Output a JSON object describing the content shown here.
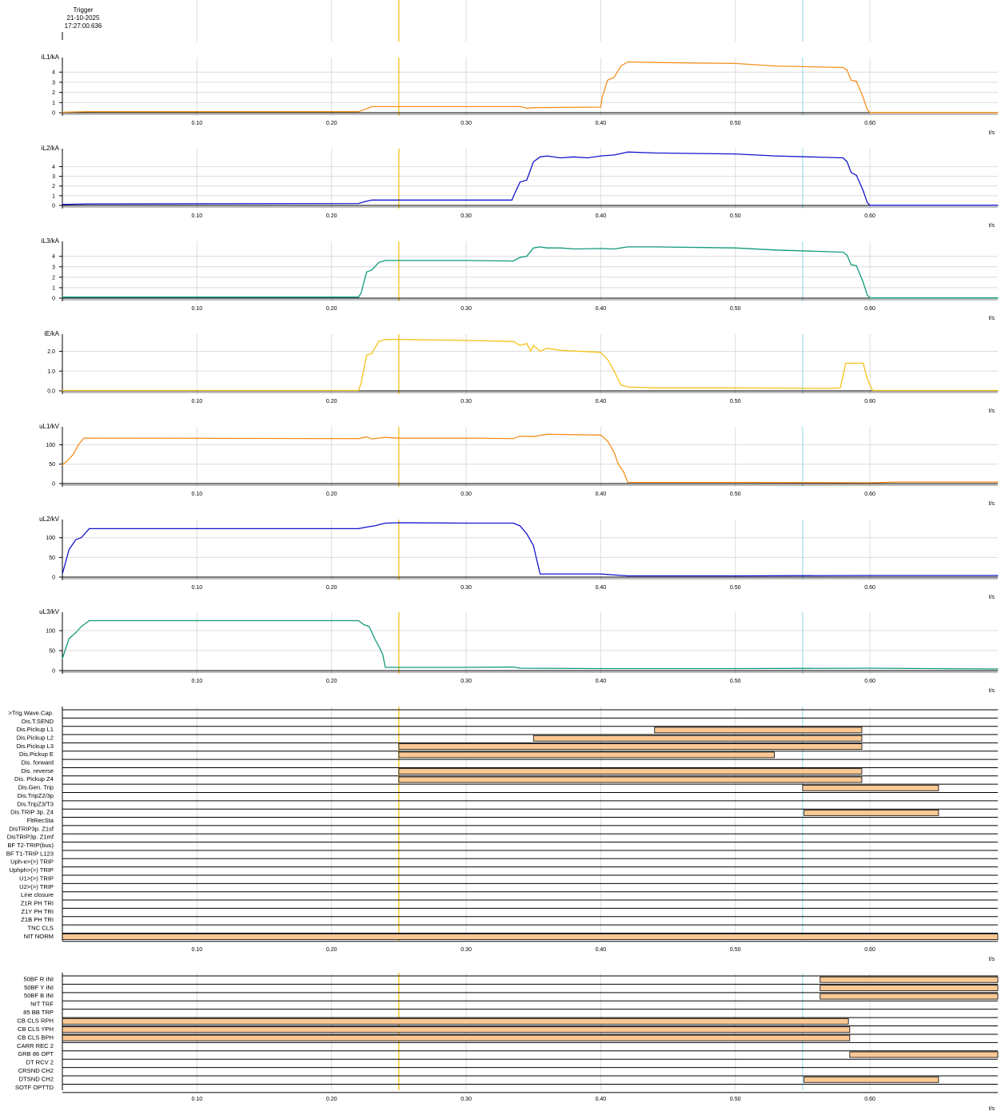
{
  "trigger": {
    "title": "Trigger",
    "date": "21-10-2025",
    "time": "17:27:00.636"
  },
  "colors": {
    "cursor_trigger": "#f5c21a",
    "cursor_2": "#8fd4e6",
    "orange": "#f5901e",
    "blue": "#1414cc",
    "green": "#119a7c",
    "yellow": "#f5c21a",
    "bar_fill": "#fbc894",
    "grid": "#dcdcdc"
  },
  "cursors": {
    "trigger_t": 0.25,
    "second_t": 0.55
  },
  "chart_data": [
    {
      "type": "line",
      "name": "iL1",
      "ylabel": "iL1/kA",
      "xlabel": "t/s",
      "color_key": "orange",
      "ylim": [
        0,
        5.2
      ],
      "yticks": [
        0,
        1,
        2,
        3,
        4
      ],
      "ytick_labels": [
        "0",
        "1",
        "2",
        "3",
        "4"
      ],
      "xticks": [
        0.1,
        0.2,
        0.3,
        0.4,
        0.5,
        0.6
      ],
      "xtick_labels": [
        "0.10",
        "0.20",
        "0.30",
        "0.40",
        "0.50",
        "0.60"
      ],
      "xlim": [
        0,
        0.695
      ],
      "x": [
        0,
        0.02,
        0.22,
        0.225,
        0.23,
        0.25,
        0.3,
        0.34,
        0.345,
        0.35,
        0.4,
        0.401,
        0.405,
        0.41,
        0.415,
        0.42,
        0.44,
        0.5,
        0.53,
        0.58,
        0.583,
        0.586,
        0.59,
        0.595,
        0.598,
        0.6,
        0.695
      ],
      "y": [
        0.05,
        0.1,
        0.1,
        0.35,
        0.6,
        0.6,
        0.6,
        0.6,
        0.45,
        0.5,
        0.55,
        1.5,
        3.2,
        3.5,
        4.6,
        5.0,
        4.95,
        4.85,
        4.6,
        4.45,
        4.2,
        3.2,
        3.1,
        1.5,
        0.3,
        0.02,
        0.02
      ]
    },
    {
      "type": "line",
      "name": "iL2",
      "ylabel": "iL2/kA",
      "xlabel": "t/s",
      "color_key": "blue",
      "ylim": [
        0,
        5.6
      ],
      "yticks": [
        0,
        1,
        2,
        3,
        4
      ],
      "ytick_labels": [
        "0",
        "1",
        "2",
        "3",
        "4"
      ],
      "xticks": [
        0.1,
        0.2,
        0.3,
        0.4,
        0.5,
        0.6
      ],
      "xtick_labels": [
        "0.10",
        "0.20",
        "0.30",
        "0.40",
        "0.50",
        "0.60"
      ],
      "xlim": [
        0,
        0.695
      ],
      "x": [
        0,
        0.02,
        0.22,
        0.225,
        0.23,
        0.25,
        0.3,
        0.334,
        0.336,
        0.34,
        0.345,
        0.35,
        0.355,
        0.36,
        0.37,
        0.38,
        0.39,
        0.4,
        0.41,
        0.42,
        0.44,
        0.5,
        0.53,
        0.58,
        0.583,
        0.586,
        0.59,
        0.595,
        0.598,
        0.6,
        0.695
      ],
      "y": [
        0.1,
        0.15,
        0.2,
        0.4,
        0.55,
        0.55,
        0.55,
        0.55,
        1.2,
        2.4,
        2.6,
        4.5,
        5.0,
        5.1,
        4.9,
        5.0,
        4.9,
        5.1,
        5.2,
        5.5,
        5.4,
        5.3,
        5.1,
        4.9,
        4.5,
        3.4,
        3.1,
        1.5,
        0.3,
        0.02,
        0.02
      ]
    },
    {
      "type": "line",
      "name": "iL3",
      "ylabel": "iL3/kA",
      "xlabel": "t/s",
      "color_key": "green",
      "ylim": [
        0,
        5.2
      ],
      "yticks": [
        0,
        1,
        2,
        3,
        4
      ],
      "ytick_labels": [
        "0",
        "1",
        "2",
        "3",
        "4"
      ],
      "xticks": [
        0.1,
        0.2,
        0.3,
        0.4,
        0.5,
        0.6
      ],
      "xtick_labels": [
        "0.10",
        "0.20",
        "0.30",
        "0.40",
        "0.50",
        "0.60"
      ],
      "xlim": [
        0,
        0.695
      ],
      "x": [
        0,
        0.02,
        0.22,
        0.222,
        0.226,
        0.23,
        0.235,
        0.24,
        0.25,
        0.3,
        0.335,
        0.34,
        0.345,
        0.35,
        0.355,
        0.36,
        0.37,
        0.38,
        0.4,
        0.41,
        0.42,
        0.44,
        0.5,
        0.53,
        0.58,
        0.583,
        0.586,
        0.59,
        0.595,
        0.598,
        0.6,
        0.695
      ],
      "y": [
        0.1,
        0.1,
        0.1,
        0.5,
        2.5,
        2.7,
        3.4,
        3.6,
        3.6,
        3.6,
        3.55,
        3.9,
        4.0,
        4.8,
        4.9,
        4.8,
        4.8,
        4.7,
        4.75,
        4.7,
        4.9,
        4.9,
        4.8,
        4.6,
        4.4,
        4.1,
        3.2,
        3.1,
        1.5,
        0.3,
        0.02,
        0.02
      ]
    },
    {
      "type": "line",
      "name": "iE",
      "ylabel": "iE/kA",
      "xlabel": "t/s",
      "color_key": "yellow",
      "ylim": [
        0,
        2.75
      ],
      "yticks": [
        0,
        1,
        2
      ],
      "ytick_labels": [
        "0.0",
        "1.0",
        "2.0"
      ],
      "xticks": [
        0.1,
        0.2,
        0.3,
        0.4,
        0.5,
        0.6
      ],
      "xtick_labels": [
        "0.10",
        "0.20",
        "0.30",
        "0.40",
        "0.50",
        "0.60"
      ],
      "xlim": [
        0,
        0.695
      ],
      "x": [
        0,
        0.22,
        0.222,
        0.226,
        0.23,
        0.235,
        0.24,
        0.25,
        0.3,
        0.335,
        0.34,
        0.345,
        0.348,
        0.35,
        0.355,
        0.36,
        0.37,
        0.4,
        0.405,
        0.41,
        0.415,
        0.42,
        0.44,
        0.5,
        0.57,
        0.578,
        0.582,
        0.595,
        0.598,
        0.602,
        0.695
      ],
      "y": [
        0.02,
        0.02,
        0.4,
        1.8,
        1.9,
        2.5,
        2.6,
        2.6,
        2.55,
        2.5,
        2.3,
        2.4,
        2.0,
        2.3,
        2.0,
        2.15,
        2.05,
        1.95,
        1.6,
        1.0,
        0.3,
        0.2,
        0.15,
        0.15,
        0.12,
        0.15,
        1.4,
        1.4,
        0.6,
        0.02,
        0.02
      ]
    },
    {
      "type": "line",
      "name": "uL1",
      "ylabel": "uL1/kV",
      "xlabel": "t/s",
      "color_key": "orange",
      "ylim": [
        0,
        140
      ],
      "yticks": [
        0,
        50,
        100
      ],
      "ytick_labels": [
        "0",
        "50",
        "100"
      ],
      "xticks": [
        0.1,
        0.2,
        0.3,
        0.4,
        0.5,
        0.6
      ],
      "xtick_labels": [
        "0.10",
        "0.20",
        "0.30",
        "0.40",
        "0.50",
        "0.60"
      ],
      "xlim": [
        0,
        0.695
      ],
      "x": [
        0,
        0.004,
        0.008,
        0.012,
        0.016,
        0.02,
        0.22,
        0.226,
        0.23,
        0.24,
        0.25,
        0.3,
        0.335,
        0.34,
        0.35,
        0.36,
        0.4,
        0.405,
        0.41,
        0.413,
        0.417,
        0.42,
        0.5,
        0.6,
        0.62,
        0.695
      ],
      "y": [
        48,
        60,
        75,
        100,
        117,
        117,
        116,
        120,
        115,
        119,
        117,
        117,
        116,
        122,
        121,
        127,
        125,
        110,
        80,
        50,
        30,
        3,
        3,
        2,
        4,
        4
      ]
    },
    {
      "type": "line",
      "name": "uL2",
      "ylabel": "uL2/kV",
      "xlabel": "t/s",
      "color_key": "blue",
      "ylim": [
        0,
        140
      ],
      "yticks": [
        0,
        50,
        100
      ],
      "ytick_labels": [
        "0",
        "50",
        "100"
      ],
      "xticks": [
        0.1,
        0.2,
        0.3,
        0.4,
        0.5,
        0.6
      ],
      "xtick_labels": [
        "0.10",
        "0.20",
        "0.30",
        "0.40",
        "0.50",
        "0.60"
      ],
      "xlim": [
        0,
        0.695
      ],
      "x": [
        0,
        0.005,
        0.01,
        0.014,
        0.02,
        0.22,
        0.228,
        0.232,
        0.24,
        0.25,
        0.3,
        0.335,
        0.34,
        0.345,
        0.35,
        0.352,
        0.355,
        0.4,
        0.42,
        0.5,
        0.6,
        0.695
      ],
      "y": [
        8,
        70,
        95,
        100,
        123,
        123,
        128,
        130,
        137,
        138,
        137,
        137,
        130,
        110,
        80,
        50,
        8,
        8,
        3,
        3,
        4,
        4
      ]
    },
    {
      "type": "line",
      "name": "uL3",
      "ylabel": "uL3/kV",
      "xlabel": "t/s",
      "color_key": "green",
      "ylim": [
        0,
        140
      ],
      "yticks": [
        0,
        50,
        100
      ],
      "ytick_labels": [
        "0",
        "50",
        "100"
      ],
      "xticks": [
        0.1,
        0.2,
        0.3,
        0.4,
        0.5,
        0.6
      ],
      "xtick_labels": [
        "0.10",
        "0.20",
        "0.30",
        "0.40",
        "0.50",
        "0.60"
      ],
      "xlim": [
        0,
        0.695
      ],
      "x": [
        0,
        0.005,
        0.01,
        0.014,
        0.02,
        0.22,
        0.224,
        0.228,
        0.232,
        0.236,
        0.238,
        0.24,
        0.25,
        0.3,
        0.335,
        0.34,
        0.4,
        0.5,
        0.6,
        0.695
      ],
      "y": [
        30,
        80,
        95,
        110,
        125,
        125,
        115,
        110,
        80,
        55,
        40,
        8,
        8,
        8,
        9,
        6,
        5,
        5,
        6,
        4
      ]
    },
    {
      "type": "bar",
      "name": "binary-1",
      "xlabel": "t/s",
      "xticks": [
        0.1,
        0.2,
        0.3,
        0.4,
        0.5,
        0.6
      ],
      "xtick_labels": [
        "0.10",
        "0.20",
        "0.30",
        "0.40",
        "0.50",
        "0.60"
      ],
      "xlim": [
        0,
        0.695
      ],
      "signals": [
        {
          "label": ">Trig.Wave.Cap.",
          "intervals": []
        },
        {
          "label": "Dis.T.SEND",
          "intervals": []
        },
        {
          "label": "Dis.Pickup L1",
          "intervals": [
            [
              0.44,
              0.594
            ]
          ]
        },
        {
          "label": "Dis.Pickup L2",
          "intervals": [
            [
              0.35,
              0.594
            ]
          ]
        },
        {
          "label": "Dis.Pickup L3",
          "intervals": [
            [
              0.25,
              0.594
            ]
          ]
        },
        {
          "label": "Dis.Pickup E",
          "intervals": [
            [
              0.25,
              0.529
            ]
          ]
        },
        {
          "label": "Dis. forward",
          "intervals": []
        },
        {
          "label": "Dis. reverse",
          "intervals": [
            [
              0.25,
              0.594
            ]
          ]
        },
        {
          "label": "Dis. Pickup Z4",
          "intervals": [
            [
              0.25,
              0.594
            ]
          ]
        },
        {
          "label": "Dis.Gen. Trip",
          "intervals": [
            [
              0.55,
              0.651
            ]
          ]
        },
        {
          "label": "Dis.TripZ2/3p",
          "intervals": []
        },
        {
          "label": "Dis.TripZ3/T3",
          "intervals": []
        },
        {
          "label": "Dis.TRIP 3p. Z4",
          "intervals": [
            [
              0.551,
              0.651
            ]
          ]
        },
        {
          "label": "FltRecSta",
          "intervals": []
        },
        {
          "label": "DisTRIP3p. Z1sf",
          "intervals": []
        },
        {
          "label": "DisTRIP3p. Z1mf",
          "intervals": []
        },
        {
          "label": "BF T2-TRIP(bus)",
          "intervals": []
        },
        {
          "label": "BF T1-TRIP L123",
          "intervals": []
        },
        {
          "label": "Uph-e>(>) TRIP",
          "intervals": []
        },
        {
          "label": "Uphph>(>) TRIP",
          "intervals": []
        },
        {
          "label": "U1>(>) TRIP",
          "intervals": []
        },
        {
          "label": "U2>(>) TRIP",
          "intervals": []
        },
        {
          "label": "Line closure",
          "intervals": []
        },
        {
          "label": "Z1R PH TRI",
          "intervals": []
        },
        {
          "label": "Z1Y PH TRI",
          "intervals": []
        },
        {
          "label": "Z1B PH TRI",
          "intervals": []
        },
        {
          "label": "TNC CLS",
          "intervals": []
        },
        {
          "label": "NIT NORM",
          "intervals": [
            [
              0,
              0.695
            ]
          ]
        }
      ]
    },
    {
      "type": "bar",
      "name": "binary-2",
      "xlabel": "t/s",
      "xticks": [
        0.1,
        0.2,
        0.3,
        0.4,
        0.5,
        0.6
      ],
      "xtick_labels": [
        "0.10",
        "0.20",
        "0.30",
        "0.40",
        "0.50",
        "0.60"
      ],
      "xlim": [
        0,
        0.695
      ],
      "signals": [
        {
          "label": "50BF R INI",
          "intervals": [
            [
              0.563,
              0.695
            ]
          ]
        },
        {
          "label": "50BF Y INI",
          "intervals": [
            [
              0.563,
              0.695
            ]
          ]
        },
        {
          "label": "50BF B INI",
          "intervals": [
            [
              0.563,
              0.695
            ]
          ]
        },
        {
          "label": "NIT TRF",
          "intervals": []
        },
        {
          "label": "85 BB TRP",
          "intervals": []
        },
        {
          "label": "CB CLS RPH",
          "intervals": [
            [
              0,
              0.584
            ]
          ]
        },
        {
          "label": "CB CLS YPH",
          "intervals": [
            [
              0,
              0.585
            ]
          ]
        },
        {
          "label": "CB CLS BPH",
          "intervals": [
            [
              0,
              0.585
            ]
          ]
        },
        {
          "label": "CARR REC 2",
          "intervals": []
        },
        {
          "label": "GRB 86 OPT",
          "intervals": [
            [
              0.585,
              0.695
            ]
          ]
        },
        {
          "label": "DT RCV 2",
          "intervals": []
        },
        {
          "label": "CRSND CH2",
          "intervals": []
        },
        {
          "label": "DTSND CH2",
          "intervals": [
            [
              0.551,
              0.651
            ]
          ]
        },
        {
          "label": "SOTF OPTTD",
          "intervals": []
        }
      ]
    }
  ]
}
